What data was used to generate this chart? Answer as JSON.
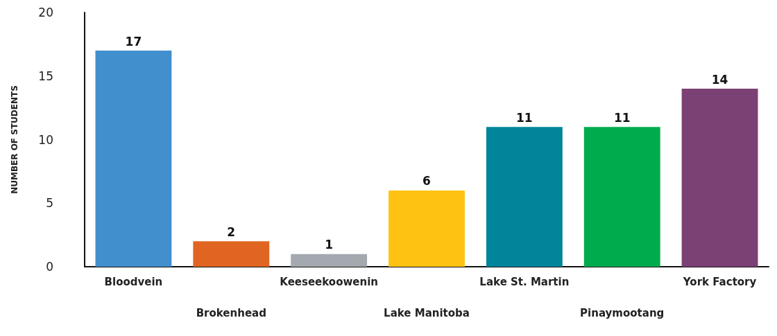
{
  "chart_data": {
    "type": "bar",
    "ylabel": "NUMBER OF STUDENTS",
    "categories": [
      "Bloodvein",
      "Brokenhead",
      "Keeseekoowenin",
      "Lake Manitoba",
      "Lake St. Martin",
      "Pinaymootang",
      "York Factory"
    ],
    "values": [
      17,
      2,
      1,
      6,
      11,
      11,
      14
    ],
    "colors": [
      "#428fce",
      "#e06522",
      "#a3a9ae",
      "#fec312",
      "#00859b",
      "#00ab4e",
      "#7b4174"
    ],
    "ylim": [
      0,
      20
    ],
    "yticks": [
      0,
      5,
      10,
      15,
      20
    ],
    "grid": false,
    "data_labels": true
  }
}
